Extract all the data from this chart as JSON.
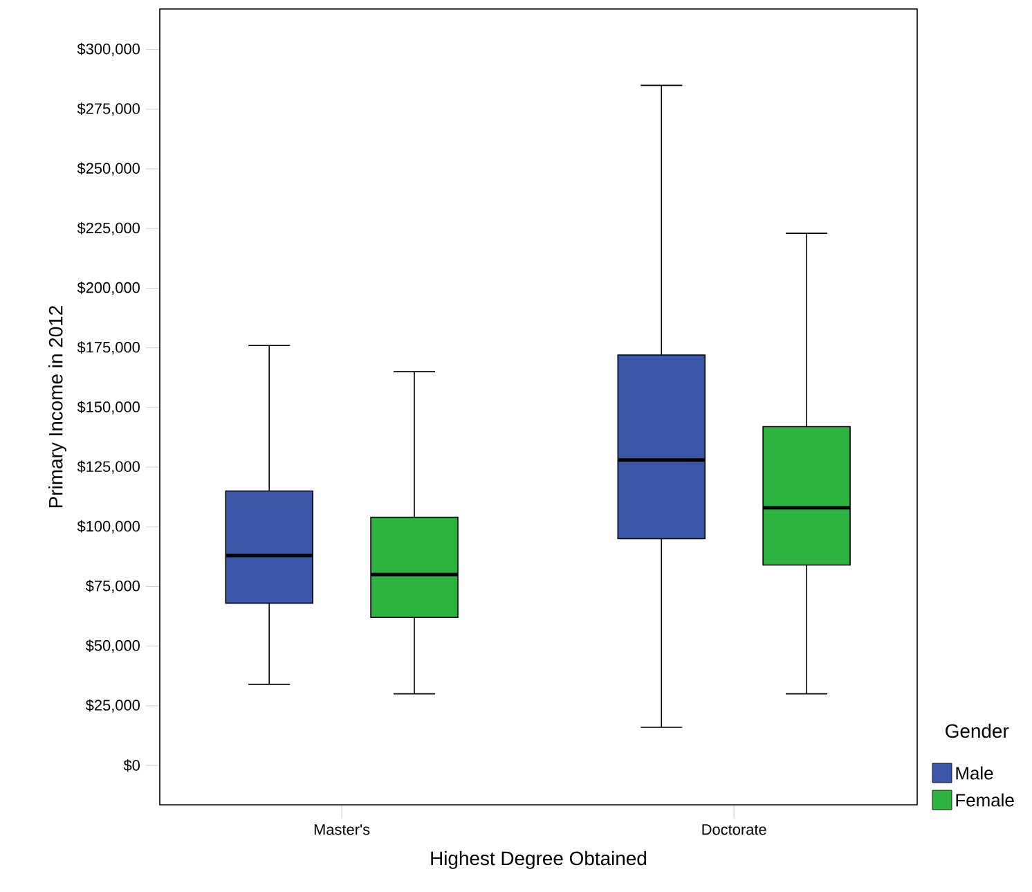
{
  "chart_data": {
    "type": "box",
    "xlabel": "Highest Degree Obtained",
    "ylabel": "Primary Income in 2012",
    "legend_title": "Gender",
    "legend": "right",
    "categories": [
      "Master's",
      "Doctorate"
    ],
    "ylim": [
      -16500,
      317000
    ],
    "yticks": [
      {
        "value": 0,
        "label": "$0"
      },
      {
        "value": 25000,
        "label": "$25,000"
      },
      {
        "value": 50000,
        "label": "$50,000"
      },
      {
        "value": 75000,
        "label": "$75,000"
      },
      {
        "value": 100000,
        "label": "$100,000"
      },
      {
        "value": 125000,
        "label": "$125,000"
      },
      {
        "value": 150000,
        "label": "$150,000"
      },
      {
        "value": 175000,
        "label": "$175,000"
      },
      {
        "value": 200000,
        "label": "$200,000"
      },
      {
        "value": 225000,
        "label": "$225,000"
      },
      {
        "value": 250000,
        "label": "$250,000"
      },
      {
        "value": 275000,
        "label": "$275,000"
      },
      {
        "value": 300000,
        "label": "$300,000"
      }
    ],
    "series": [
      {
        "name": "Male",
        "color": "#3a56a8",
        "boxes": [
          {
            "low": 34000,
            "q1": 68000,
            "median": 88000,
            "q3": 115000,
            "high": 176000
          },
          {
            "low": 16000,
            "q1": 95000,
            "median": 128000,
            "q3": 172000,
            "high": 285000
          }
        ]
      },
      {
        "name": "Female",
        "color": "#2db340",
        "boxes": [
          {
            "low": 30000,
            "q1": 62000,
            "median": 80000,
            "q3": 104000,
            "high": 165000
          },
          {
            "low": 30000,
            "q1": 84000,
            "median": 108000,
            "q3": 142000,
            "high": 223000
          }
        ]
      }
    ]
  }
}
